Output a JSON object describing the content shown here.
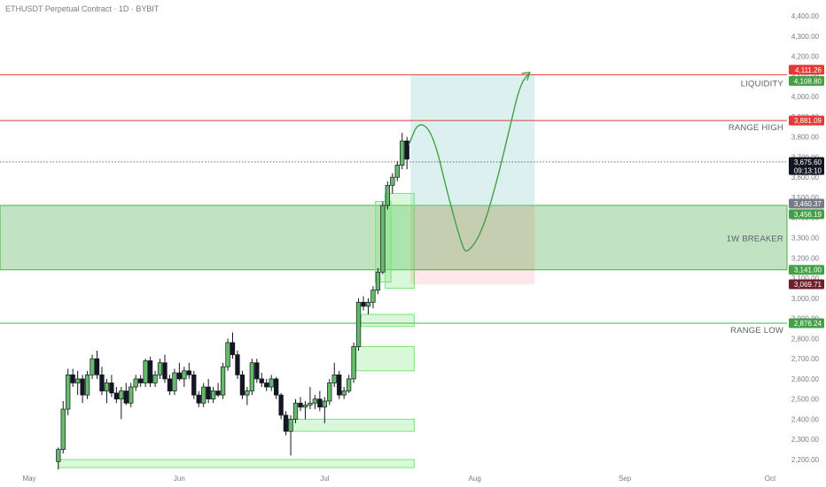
{
  "header": {
    "title": "ETHUSDT Perpetual Contract · 1D · BYBIT"
  },
  "colors": {
    "bull": "#4caf50",
    "bull_fill": "#a5d6a7",
    "bear": "#131722",
    "zone_green": "#4caf50",
    "range_red": "#e53935",
    "target_box": "#b2dfdb",
    "stop_box": "#f8bbd0",
    "projection": "#43a047",
    "axis_text": "#787b86",
    "last_price_bg": "#131722",
    "range_low_bg": "#4caf50",
    "breaker_low_bg": "#4caf50",
    "breaker_mid_bg": "#43a047",
    "stop_bg": "#6d1f2a"
  },
  "chart_data": {
    "type": "candlestick",
    "title": "ETHUSDT Perpetual Contract · 1D · BYBIT",
    "x_ticks": [
      {
        "day": 0,
        "label": "May"
      },
      {
        "day": 31,
        "label": "Jun"
      },
      {
        "day": 61,
        "label": "Jul"
      },
      {
        "day": 92,
        "label": "Aug"
      },
      {
        "day": 123,
        "label": "Sep"
      },
      {
        "day": 153,
        "label": "Oct"
      }
    ],
    "y_ticks": [
      2200,
      2300,
      2400,
      2500,
      2600,
      2700,
      2800,
      2900,
      3000,
      3100,
      3200,
      3300,
      3400,
      3500,
      3600,
      3700,
      3800,
      3900,
      4000,
      4100,
      4200,
      4300,
      4400
    ],
    "y_tick_labels": [
      "2,200.00",
      "2,300.00",
      "2,400.00",
      "2,500.00",
      "2,600.00",
      "2,700.00",
      "2,800.00",
      "2,900.00",
      "3,000.00",
      "3,100.00",
      "3,200.00",
      "3,300.00",
      "3,400.00",
      "3,500.00",
      "3,600.00",
      "3,700.00",
      "3,800.00",
      "3,900.00",
      "4,000.00",
      "4,100.00",
      "4,200.00",
      "4,300.00",
      "4,400.00"
    ],
    "ylim": [
      2160,
      4480
    ],
    "xlim": [
      0,
      153
    ],
    "candles": [
      [
        6,
        2190,
        2260,
        2150,
        2250
      ],
      [
        7,
        2250,
        2490,
        2230,
        2450
      ],
      [
        8,
        2450,
        2650,
        2420,
        2620
      ],
      [
        9,
        2620,
        2650,
        2560,
        2580
      ],
      [
        10,
        2580,
        2640,
        2520,
        2600
      ],
      [
        11,
        2600,
        2620,
        2480,
        2520
      ],
      [
        12,
        2520,
        2640,
        2500,
        2620
      ],
      [
        13,
        2620,
        2720,
        2600,
        2700
      ],
      [
        14,
        2700,
        2740,
        2600,
        2620
      ],
      [
        15,
        2620,
        2660,
        2520,
        2540
      ],
      [
        16,
        2540,
        2600,
        2480,
        2580
      ],
      [
        17,
        2580,
        2620,
        2510,
        2530
      ],
      [
        18,
        2530,
        2560,
        2480,
        2500
      ],
      [
        19,
        2500,
        2560,
        2400,
        2540
      ],
      [
        20,
        2540,
        2580,
        2470,
        2480
      ],
      [
        21,
        2480,
        2580,
        2460,
        2560
      ],
      [
        22,
        2560,
        2620,
        2540,
        2600
      ],
      [
        23,
        2600,
        2620,
        2560,
        2580
      ],
      [
        24,
        2580,
        2700,
        2560,
        2690
      ],
      [
        25,
        2690,
        2710,
        2560,
        2580
      ],
      [
        26,
        2580,
        2640,
        2560,
        2620
      ],
      [
        27,
        2620,
        2700,
        2600,
        2680
      ],
      [
        28,
        2680,
        2720,
        2580,
        2600
      ],
      [
        29,
        2600,
        2620,
        2520,
        2540
      ],
      [
        30,
        2540,
        2650,
        2520,
        2630
      ],
      [
        31,
        2630,
        2680,
        2590,
        2600
      ],
      [
        32,
        2600,
        2660,
        2560,
        2640
      ],
      [
        33,
        2640,
        2680,
        2600,
        2620
      ],
      [
        34,
        2620,
        2640,
        2500,
        2520
      ],
      [
        35,
        2520,
        2540,
        2460,
        2480
      ],
      [
        36,
        2480,
        2580,
        2460,
        2560
      ],
      [
        37,
        2560,
        2600,
        2480,
        2500
      ],
      [
        38,
        2500,
        2560,
        2480,
        2540
      ],
      [
        39,
        2540,
        2580,
        2510,
        2520
      ],
      [
        40,
        2520,
        2680,
        2500,
        2660
      ],
      [
        41,
        2660,
        2800,
        2640,
        2780
      ],
      [
        42,
        2780,
        2830,
        2700,
        2720
      ],
      [
        43,
        2720,
        2740,
        2600,
        2620
      ],
      [
        44,
        2620,
        2640,
        2500,
        2520
      ],
      [
        45,
        2520,
        2560,
        2470,
        2540
      ],
      [
        46,
        2540,
        2700,
        2520,
        2680
      ],
      [
        47,
        2680,
        2700,
        2580,
        2600
      ],
      [
        48,
        2600,
        2630,
        2560,
        2580
      ],
      [
        49,
        2580,
        2600,
        2540,
        2560
      ],
      [
        50,
        2560,
        2620,
        2540,
        2600
      ],
      [
        51,
        2600,
        2610,
        2500,
        2520
      ],
      [
        52,
        2520,
        2530,
        2400,
        2420
      ],
      [
        53,
        2420,
        2440,
        2320,
        2340
      ],
      [
        54,
        2340,
        2420,
        2220,
        2400
      ],
      [
        55,
        2400,
        2500,
        2380,
        2480
      ],
      [
        56,
        2480,
        2510,
        2440,
        2460
      ],
      [
        57,
        2460,
        2490,
        2400,
        2470
      ],
      [
        58,
        2470,
        2560,
        2450,
        2480
      ],
      [
        59,
        2480,
        2520,
        2450,
        2500
      ],
      [
        60,
        2500,
        2540,
        2440,
        2460
      ],
      [
        61,
        2460,
        2510,
        2380,
        2490
      ],
      [
        62,
        2490,
        2600,
        2470,
        2580
      ],
      [
        63,
        2580,
        2680,
        2560,
        2620
      ],
      [
        64,
        2620,
        2640,
        2500,
        2520
      ],
      [
        65,
        2520,
        2560,
        2500,
        2540
      ],
      [
        66,
        2540,
        2620,
        2530,
        2600
      ],
      [
        67,
        2600,
        2780,
        2580,
        2760
      ],
      [
        68,
        2760,
        3000,
        2740,
        2980
      ],
      [
        69,
        2980,
        3010,
        2940,
        2960
      ],
      [
        70,
        2960,
        3000,
        2920,
        2980
      ],
      [
        71,
        2980,
        3060,
        2950,
        3040
      ],
      [
        72,
        3040,
        3150,
        3020,
        3130
      ],
      [
        73,
        3130,
        3480,
        3120,
        3460
      ],
      [
        74,
        3460,
        3580,
        3440,
        3560
      ],
      [
        75,
        3560,
        3620,
        3520,
        3600
      ],
      [
        76,
        3600,
        3680,
        3580,
        3660
      ],
      [
        77,
        3660,
        3820,
        3640,
        3780
      ],
      [
        78,
        3780,
        3800,
        3640,
        3690
      ]
    ],
    "zones": [
      {
        "label": "1W BREAKER",
        "y_low": 3141,
        "y_high": 3460.37
      },
      {
        "y_low": 3080,
        "y_high": 3480
      },
      {
        "y_low": 3050,
        "y_high": 3520
      },
      {
        "y_low": 2860,
        "y_high": 2920
      },
      {
        "y_low": 2640,
        "y_high": 2760
      },
      {
        "y_low": 2340,
        "y_high": 2400
      },
      {
        "y_low": 2160,
        "y_high": 2200
      }
    ],
    "levels": [
      {
        "label": "LIQUIDITY",
        "value": 4108.8
      },
      {
        "label": "RANGE HIGH",
        "value": 3881.09
      },
      {
        "label": "RANGE LOW",
        "value": 2876.24
      }
    ],
    "last_price": 3675.6,
    "position": {
      "entry": 3456.19,
      "target": 4108.8,
      "stop": 3069.71,
      "start_day": 78,
      "end_day": 102
    },
    "projection": [
      [
        78,
        3760
      ],
      [
        80,
        3880
      ],
      [
        83,
        3820
      ],
      [
        86,
        3520
      ],
      [
        89,
        3260
      ],
      [
        90,
        3220
      ],
      [
        93,
        3320
      ],
      [
        96,
        3560
      ],
      [
        99,
        3860
      ],
      [
        101,
        4060
      ],
      [
        103,
        4120
      ]
    ],
    "price_tags": [
      {
        "value": 4111.26,
        "text": "4,111.26",
        "color": "#e53935"
      },
      {
        "value": 4108.8,
        "text": "4,108.80",
        "color": "#43a047"
      },
      {
        "value": 3881.09,
        "text": "3,881.09",
        "color": "#e53935"
      },
      {
        "value": 3675.6,
        "text": "3,675.60",
        "color": "#131722",
        "sub": "09:13:10"
      },
      {
        "value": 3460.37,
        "text": "3,460.37",
        "color": "#787b86"
      },
      {
        "value": 3456.19,
        "text": "3,456.19",
        "color": "#43a047"
      },
      {
        "value": 3141.0,
        "text": "3,141.00",
        "color": "#43a047"
      },
      {
        "value": 3069.71,
        "text": "3,069.71",
        "color": "#6d1f2a"
      },
      {
        "value": 2876.24,
        "text": "2,876.24",
        "color": "#43a047"
      }
    ]
  }
}
